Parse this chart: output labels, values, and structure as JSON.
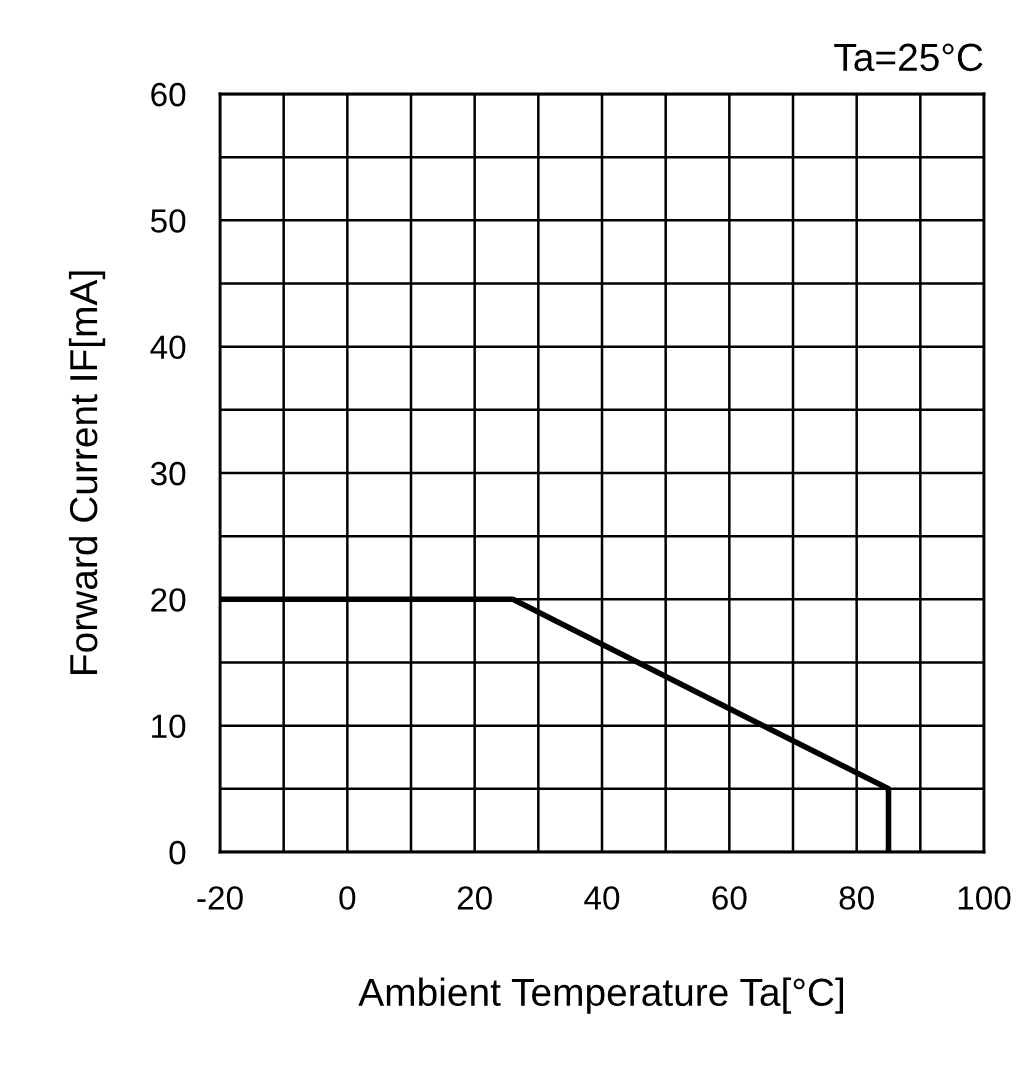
{
  "chart_data": {
    "type": "line",
    "xlabel": "Ambient Temperature Ta[°C]",
    "ylabel": "Forward Current IF[mA]",
    "annotations": [
      "Ta=25°C"
    ],
    "series": [
      {
        "color": "#000000",
        "x": [
          -20,
          26,
          85,
          85
        ],
        "values": [
          20,
          20,
          5,
          0
        ]
      }
    ],
    "xlim": [
      -20,
      100
    ],
    "ylim": [
      0,
      60
    ],
    "xticks": [
      -20,
      {
        "value": -10,
        "label": null
      },
      0,
      {
        "value": 10,
        "label": null
      },
      20,
      {
        "value": 30,
        "label": null
      },
      40,
      {
        "value": 50,
        "label": null
      },
      60,
      {
        "value": 70,
        "label": null
      },
      80,
      {
        "value": 90,
        "label": null
      },
      100
    ],
    "yticks": [
      0,
      {
        "value": 5,
        "label": null
      },
      10,
      {
        "value": 15,
        "label": null
      },
      20,
      {
        "value": 25,
        "label": null
      },
      30,
      {
        "value": 35,
        "label": null
      },
      40,
      {
        "value": 45,
        "label": null
      },
      50,
      {
        "value": 55,
        "label": null
      },
      60
    ],
    "grid": true,
    "legend": false,
    "marker": "none",
    "line_style": "solid"
  }
}
